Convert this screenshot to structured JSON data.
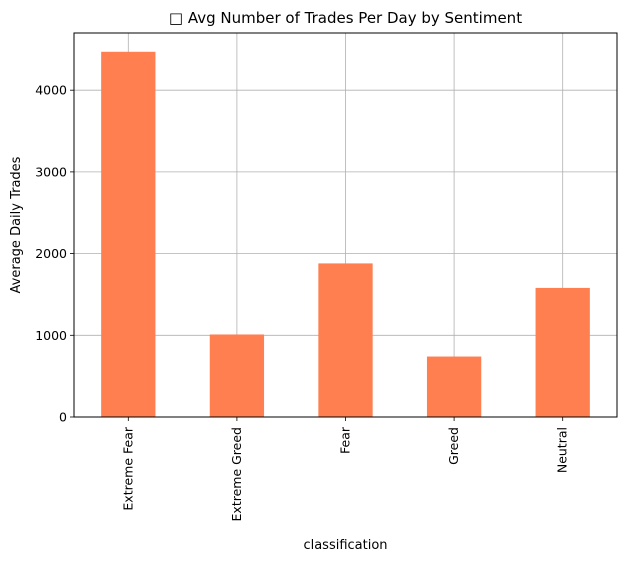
{
  "chart_data": {
    "type": "bar",
    "title": "□ Avg Number of Trades Per Day by Sentiment",
    "xlabel": "classification",
    "ylabel": "Average Daily Trades",
    "categories": [
      "Extreme Fear",
      "Extreme Greed",
      "Fear",
      "Greed",
      "Neutral"
    ],
    "values": [
      4470,
      1010,
      1880,
      740,
      1580
    ],
    "ylim": [
      0,
      4700
    ],
    "yticks": [
      0,
      1000,
      2000,
      3000,
      4000
    ],
    "grid": true,
    "colors": {
      "bar": "#ff7f50",
      "grid": "#b0b0b0",
      "axis": "#000000"
    }
  }
}
